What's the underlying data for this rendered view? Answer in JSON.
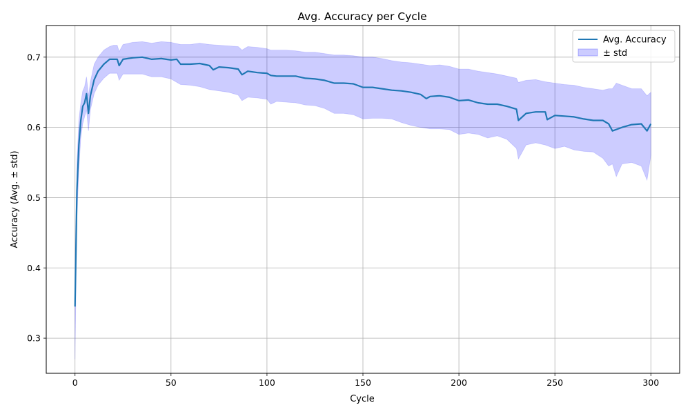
{
  "chart_data": {
    "type": "line",
    "title": "Avg. Accuracy per Cycle",
    "xlabel": "Cycle",
    "ylabel": "Accuracy (Avg. ± std)",
    "xlim": [
      -15,
      315
    ],
    "ylim": [
      0.25,
      0.745
    ],
    "xticks": [
      0,
      50,
      100,
      150,
      200,
      250,
      300
    ],
    "yticks": [
      0.3,
      0.4,
      0.5,
      0.6,
      0.7
    ],
    "grid": true,
    "legend_position": "top-right",
    "series": [
      {
        "name": "Avg. Accuracy",
        "kind": "line",
        "color": "#1f77b4",
        "x": [
          0,
          1,
          2,
          3,
          4,
          5,
          6,
          7,
          8,
          10,
          12,
          15,
          18,
          20,
          22,
          23,
          25,
          30,
          35,
          40,
          45,
          50,
          53,
          55,
          60,
          65,
          70,
          72,
          75,
          80,
          85,
          87,
          90,
          95,
          100,
          102,
          105,
          110,
          115,
          120,
          125,
          130,
          135,
          140,
          145,
          150,
          155,
          160,
          165,
          170,
          175,
          180,
          183,
          185,
          190,
          195,
          200,
          205,
          210,
          215,
          220,
          225,
          230,
          231,
          235,
          240,
          245,
          246,
          250,
          255,
          260,
          265,
          270,
          275,
          278,
          280,
          285,
          290,
          295,
          298,
          300
        ],
        "y": [
          0.345,
          0.51,
          0.575,
          0.61,
          0.63,
          0.635,
          0.648,
          0.62,
          0.645,
          0.668,
          0.68,
          0.69,
          0.697,
          0.697,
          0.697,
          0.688,
          0.697,
          0.699,
          0.7,
          0.697,
          0.698,
          0.696,
          0.697,
          0.69,
          0.69,
          0.691,
          0.688,
          0.682,
          0.686,
          0.685,
          0.683,
          0.675,
          0.68,
          0.678,
          0.677,
          0.674,
          0.673,
          0.673,
          0.673,
          0.67,
          0.669,
          0.667,
          0.663,
          0.663,
          0.662,
          0.657,
          0.657,
          0.655,
          0.653,
          0.652,
          0.65,
          0.647,
          0.641,
          0.644,
          0.645,
          0.643,
          0.638,
          0.639,
          0.635,
          0.633,
          0.633,
          0.63,
          0.626,
          0.61,
          0.62,
          0.622,
          0.622,
          0.611,
          0.617,
          0.616,
          0.615,
          0.612,
          0.61,
          0.61,
          0.605,
          0.595,
          0.6,
          0.604,
          0.605,
          0.595,
          0.605
        ]
      },
      {
        "name": "± std",
        "kind": "band",
        "color": "#0000ff",
        "x": [
          0,
          1,
          2,
          3,
          4,
          5,
          6,
          7,
          8,
          10,
          12,
          15,
          18,
          20,
          22,
          23,
          25,
          30,
          35,
          40,
          45,
          50,
          55,
          60,
          65,
          70,
          75,
          80,
          85,
          87,
          90,
          95,
          100,
          102,
          105,
          110,
          115,
          120,
          125,
          130,
          135,
          140,
          145,
          150,
          155,
          160,
          165,
          170,
          175,
          180,
          185,
          190,
          195,
          200,
          205,
          210,
          215,
          220,
          225,
          230,
          231,
          235,
          240,
          245,
          250,
          255,
          260,
          265,
          270,
          275,
          278,
          280,
          282,
          285,
          290,
          295,
          298,
          300
        ],
        "lower": [
          0.27,
          0.47,
          0.54,
          0.585,
          0.605,
          0.615,
          0.625,
          0.595,
          0.625,
          0.648,
          0.66,
          0.67,
          0.677,
          0.677,
          0.677,
          0.667,
          0.676,
          0.676,
          0.676,
          0.672,
          0.672,
          0.669,
          0.661,
          0.66,
          0.658,
          0.654,
          0.652,
          0.65,
          0.646,
          0.638,
          0.643,
          0.642,
          0.64,
          0.633,
          0.637,
          0.636,
          0.635,
          0.632,
          0.631,
          0.627,
          0.62,
          0.62,
          0.618,
          0.612,
          0.613,
          0.613,
          0.612,
          0.607,
          0.603,
          0.6,
          0.598,
          0.598,
          0.597,
          0.59,
          0.592,
          0.59,
          0.585,
          0.588,
          0.583,
          0.57,
          0.555,
          0.575,
          0.578,
          0.575,
          0.57,
          0.573,
          0.568,
          0.566,
          0.565,
          0.556,
          0.545,
          0.548,
          0.53,
          0.548,
          0.55,
          0.545,
          0.525,
          0.56
        ],
        "upper": [
          0.4,
          0.55,
          0.61,
          0.635,
          0.652,
          0.658,
          0.672,
          0.645,
          0.665,
          0.69,
          0.7,
          0.71,
          0.715,
          0.717,
          0.717,
          0.708,
          0.718,
          0.721,
          0.722,
          0.72,
          0.722,
          0.721,
          0.718,
          0.718,
          0.72,
          0.718,
          0.717,
          0.716,
          0.715,
          0.71,
          0.715,
          0.714,
          0.712,
          0.71,
          0.71,
          0.71,
          0.709,
          0.707,
          0.707,
          0.705,
          0.703,
          0.703,
          0.702,
          0.7,
          0.7,
          0.698,
          0.695,
          0.693,
          0.692,
          0.69,
          0.688,
          0.689,
          0.687,
          0.683,
          0.683,
          0.68,
          0.678,
          0.676,
          0.673,
          0.67,
          0.664,
          0.667,
          0.668,
          0.665,
          0.663,
          0.661,
          0.66,
          0.657,
          0.655,
          0.653,
          0.655,
          0.655,
          0.663,
          0.66,
          0.655,
          0.655,
          0.645,
          0.65
        ]
      }
    ]
  }
}
